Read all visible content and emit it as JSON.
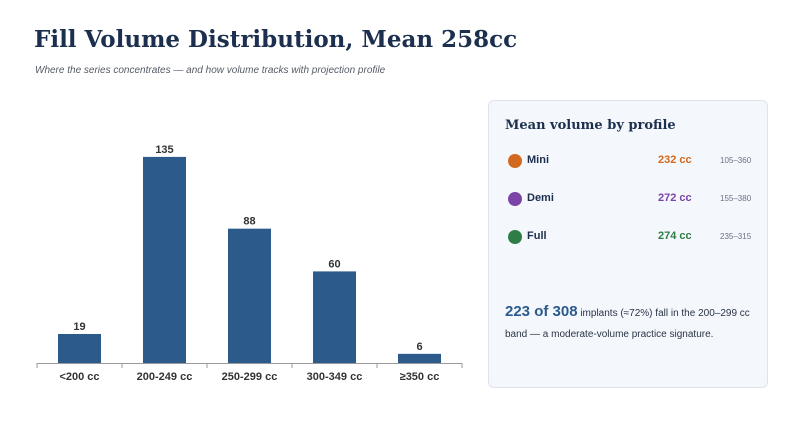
{
  "header": {
    "title": "Fill Volume Distribution, Mean 258cc",
    "subtitle": "Where the series concentrates — and how volume tracks with projection profile"
  },
  "chart_data": {
    "type": "bar",
    "categories": [
      "<200 cc",
      "200-249 cc",
      "250-299 cc",
      "300-349 cc",
      "≥350 cc"
    ],
    "values": [
      19,
      135,
      88,
      60,
      6
    ],
    "title": "",
    "xlabel": "",
    "ylabel": "",
    "ylim": [
      0,
      150
    ],
    "grid": false,
    "bar_color": "#2c5a8a"
  },
  "panel": {
    "title": "Mean volume by profile",
    "profiles": [
      {
        "name": "Mini",
        "mean": "232 cc",
        "range": "105–360",
        "color": "#d2691e"
      },
      {
        "name": "Demi",
        "mean": "272 cc",
        "range": "155–380",
        "color": "#7b44a8"
      },
      {
        "name": "Full",
        "mean": "274 cc",
        "range": "235–315",
        "color": "#2e7d47"
      }
    ],
    "summary": {
      "highlight": "223 of 308",
      "text": "implants (≈72%) fall in the 200–299 cc band — a moderate-volume practice signature."
    }
  }
}
